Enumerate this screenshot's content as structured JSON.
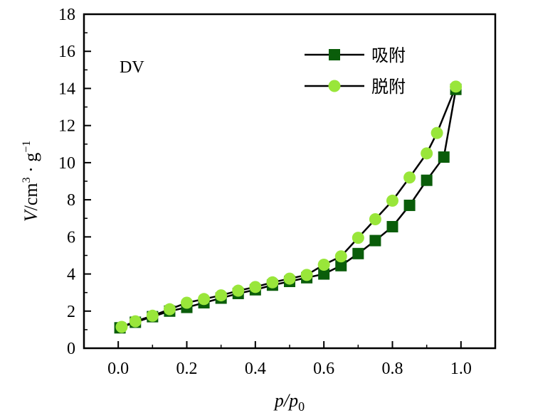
{
  "chart_data": {
    "type": "line",
    "panel_label": "DV",
    "xlabel": "p/p",
    "xlabel_sub": "0",
    "ylabel": "V/cm",
    "ylabel_sup1": "3",
    "ylabel_mid": " · g",
    "ylabel_sup2": "−1",
    "xlim": [
      -0.1,
      1.1
    ],
    "ylim": [
      0,
      18
    ],
    "xticks": [
      "0.0",
      "0.2",
      "0.4",
      "0.6",
      "0.8",
      "1.0"
    ],
    "yticks": [
      "0",
      "2",
      "4",
      "6",
      "8",
      "10",
      "12",
      "14",
      "16",
      "18"
    ],
    "legend_position": "top-right",
    "series": [
      {
        "name": "吸附",
        "marker": "square",
        "color": "#0a5d0a",
        "points": [
          [
            0.005,
            1.1
          ],
          [
            0.05,
            1.4
          ],
          [
            0.1,
            1.7
          ],
          [
            0.15,
            2.0
          ],
          [
            0.2,
            2.2
          ],
          [
            0.25,
            2.45
          ],
          [
            0.3,
            2.7
          ],
          [
            0.35,
            2.95
          ],
          [
            0.4,
            3.15
          ],
          [
            0.45,
            3.4
          ],
          [
            0.5,
            3.6
          ],
          [
            0.55,
            3.8
          ],
          [
            0.6,
            4.0
          ],
          [
            0.65,
            4.45
          ],
          [
            0.7,
            5.1
          ],
          [
            0.75,
            5.8
          ],
          [
            0.8,
            6.55
          ],
          [
            0.85,
            7.7
          ],
          [
            0.9,
            9.05
          ],
          [
            0.95,
            10.3
          ],
          [
            0.985,
            13.95
          ]
        ]
      },
      {
        "name": "脱附",
        "marker": "circle",
        "color": "#99e63a",
        "points": [
          [
            0.985,
            14.1
          ],
          [
            0.93,
            11.6
          ],
          [
            0.9,
            10.5
          ],
          [
            0.85,
            9.2
          ],
          [
            0.8,
            7.95
          ],
          [
            0.75,
            6.95
          ],
          [
            0.7,
            5.95
          ],
          [
            0.65,
            4.95
          ],
          [
            0.6,
            4.5
          ],
          [
            0.55,
            3.95
          ],
          [
            0.5,
            3.75
          ],
          [
            0.45,
            3.55
          ],
          [
            0.4,
            3.3
          ],
          [
            0.35,
            3.1
          ],
          [
            0.3,
            2.85
          ],
          [
            0.25,
            2.65
          ],
          [
            0.2,
            2.45
          ],
          [
            0.15,
            2.1
          ],
          [
            0.1,
            1.75
          ],
          [
            0.05,
            1.45
          ],
          [
            0.01,
            1.15
          ]
        ]
      }
    ]
  }
}
